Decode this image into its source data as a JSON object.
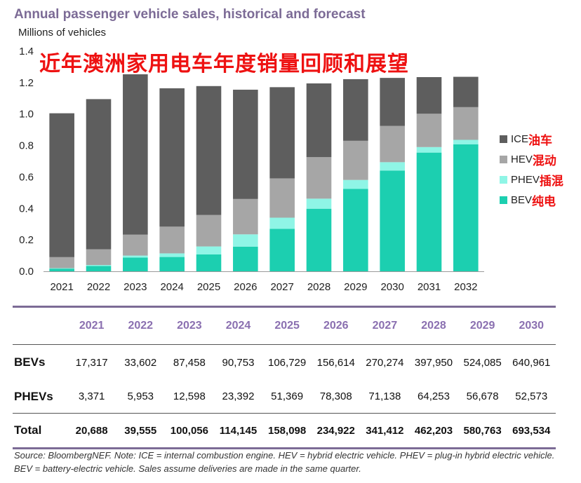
{
  "title": "Annual passenger vehicle sales, historical and forecast",
  "unit_label": "Millions of vehicles",
  "overlay_text": "近年澳洲家用电车年度销量回顾和展望",
  "chart_data": {
    "type": "bar",
    "stacked": true,
    "categories": [
      "2021",
      "2022",
      "2023",
      "2024",
      "2025",
      "2026",
      "2027",
      "2028",
      "2029",
      "2030",
      "2031",
      "2032"
    ],
    "ylim": [
      0,
      1.4
    ],
    "yticks": [
      "0.0",
      "0.2",
      "0.4",
      "0.6",
      "0.8",
      "1.0",
      "1.2",
      "1.4"
    ],
    "ylabel": "Millions of vehicles",
    "xlabel": "",
    "grid": false,
    "legend_position": "right",
    "series": [
      {
        "name": "BEV",
        "color": "#1ccfb0",
        "values": [
          0.017,
          0.034,
          0.087,
          0.091,
          0.107,
          0.157,
          0.27,
          0.398,
          0.524,
          0.641,
          0.755,
          0.808
        ]
      },
      {
        "name": "PHEV",
        "color": "#8ff5e6",
        "values": [
          0.003,
          0.006,
          0.013,
          0.023,
          0.051,
          0.078,
          0.071,
          0.064,
          0.057,
          0.053,
          0.035,
          0.028
        ]
      },
      {
        "name": "HEV",
        "color": "#a6a6a6",
        "values": [
          0.07,
          0.1,
          0.133,
          0.17,
          0.2,
          0.225,
          0.25,
          0.264,
          0.249,
          0.231,
          0.212,
          0.208
        ]
      },
      {
        "name": "ICE",
        "color": "#5e5e5e",
        "values": [
          0.915,
          0.955,
          1.02,
          0.88,
          0.82,
          0.695,
          0.58,
          0.469,
          0.392,
          0.305,
          0.233,
          0.193
        ]
      }
    ]
  },
  "legend": [
    {
      "label": "ICE",
      "zh": "油车",
      "color": "#5e5e5e"
    },
    {
      "label": "HEV",
      "zh": "混动",
      "color": "#a6a6a6"
    },
    {
      "label": "PHEV",
      "zh": "插混",
      "color": "#8ff5e6"
    },
    {
      "label": "BEV",
      "zh": "纯电",
      "color": "#1ccfb0"
    }
  ],
  "table": {
    "years": [
      "2021",
      "2022",
      "2023",
      "2024",
      "2025",
      "2026",
      "2027",
      "2028",
      "2029",
      "2030"
    ],
    "rows": [
      {
        "label": "BEVs",
        "values": [
          "17,317",
          "33,602",
          "87,458",
          "90,753",
          "106,729",
          "156,614",
          "270,274",
          "397,950",
          "524,085",
          "640,961"
        ]
      },
      {
        "label": "PHEVs",
        "values": [
          "3,371",
          "5,953",
          "12,598",
          "23,392",
          "51,369",
          "78,308",
          "71,138",
          "64,253",
          "56,678",
          "52,573"
        ]
      },
      {
        "label": "Total",
        "values": [
          "20,688",
          "39,555",
          "100,056",
          "114,145",
          "158,098",
          "234,922",
          "341,412",
          "462,203",
          "580,763",
          "693,534"
        ]
      }
    ]
  },
  "source_note": "Source: BloombergNEF. Note: ICE = internal combustion engine. HEV = hybrid electric vehicle. PHEV = plug-in hybrid electric vehicle. BEV = battery-electric vehicle. Sales assume deliveries are made in the same quarter."
}
